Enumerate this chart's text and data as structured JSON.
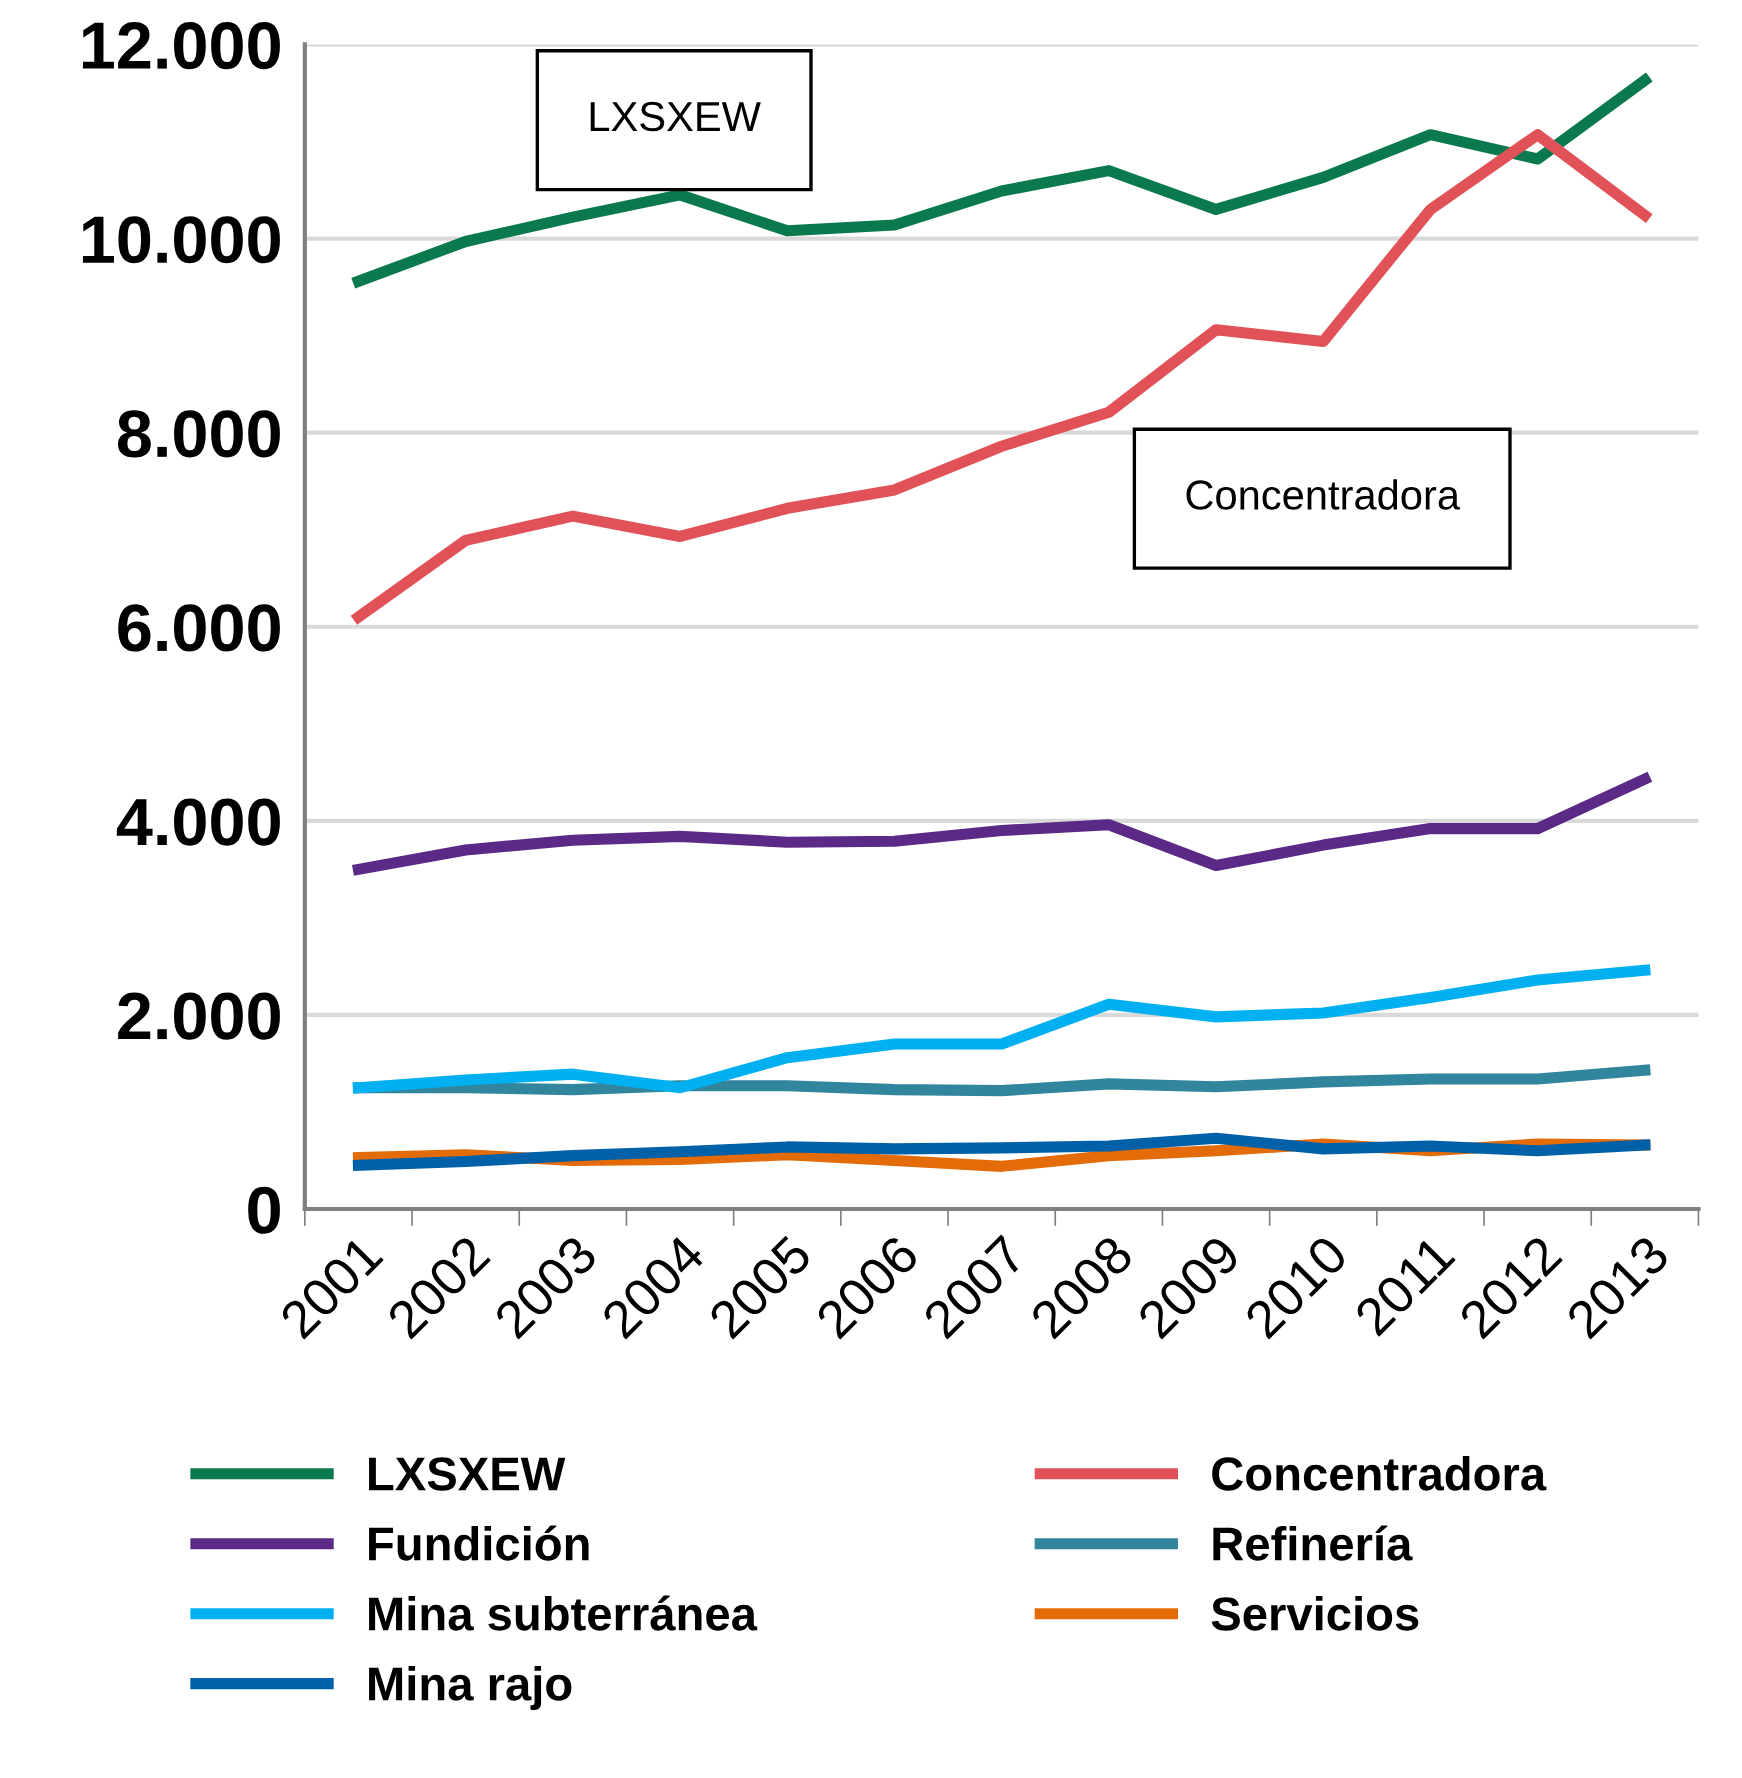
{
  "chart_data": {
    "type": "line",
    "categories": [
      "2001",
      "2002",
      "2003",
      "2004",
      "2005",
      "2006",
      "2007",
      "2008",
      "2009",
      "2010",
      "2011",
      "2012",
      "2013"
    ],
    "series": [
      {
        "name": "LXSXEW",
        "color": "#0a7a4e",
        "values": [
          9560,
          9970,
          10220,
          10450,
          10080,
          10140,
          10490,
          10700,
          10300,
          10630,
          11070,
          10820,
          11630
        ]
      },
      {
        "name": "Concentradora",
        "color": "#e05257",
        "values": [
          6100,
          6890,
          7140,
          6930,
          7220,
          7410,
          7860,
          8210,
          9060,
          8940,
          10300,
          11070,
          10240
        ]
      },
      {
        "name": "Fundición",
        "color": "#5b2a86",
        "values": [
          3500,
          3700,
          3800,
          3840,
          3780,
          3790,
          3900,
          3960,
          3540,
          3750,
          3920,
          3920,
          4430
        ]
      },
      {
        "name": "Refinería",
        "color": "#31859c",
        "values": [
          1250,
          1250,
          1230,
          1270,
          1270,
          1230,
          1220,
          1290,
          1260,
          1310,
          1340,
          1340,
          1430
        ]
      },
      {
        "name": "Mina subterránea",
        "color": "#00b0f0",
        "values": [
          1250,
          1330,
          1390,
          1250,
          1560,
          1700,
          1700,
          2110,
          1980,
          2020,
          2180,
          2360,
          2460
        ]
      },
      {
        "name": "Servicios",
        "color": "#e36c09",
        "values": [
          530,
          560,
          500,
          510,
          560,
          500,
          440,
          550,
          600,
          670,
          600,
          670,
          660
        ]
      },
      {
        "name": "Mina rajo",
        "color": "#0060a8",
        "values": [
          450,
          490,
          550,
          590,
          640,
          620,
          630,
          650,
          730,
          620,
          650,
          600,
          660
        ]
      }
    ],
    "ylim": [
      0,
      12000
    ],
    "yticks": [
      {
        "value": 0,
        "label": "0"
      },
      {
        "value": 2000,
        "label": "2.000"
      },
      {
        "value": 4000,
        "label": "4.000"
      },
      {
        "value": 6000,
        "label": "6.000"
      },
      {
        "value": 8000,
        "label": "8.000"
      },
      {
        "value": 10000,
        "label": "10.000"
      },
      {
        "value": 12000,
        "label": "12.000"
      }
    ],
    "grid": "y",
    "legend": "bottom",
    "marker": "none",
    "line_style": "solid",
    "annotations": [
      "LXSXEW",
      "Concentradora"
    ]
  }
}
